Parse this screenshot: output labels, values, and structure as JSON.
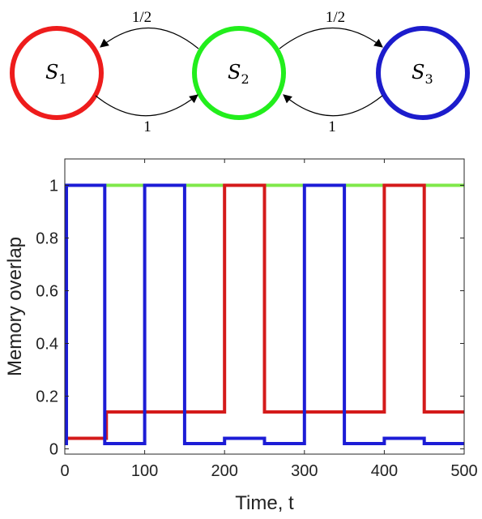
{
  "diagram": {
    "states": [
      {
        "id": "S1",
        "label": "S",
        "sub": "1",
        "color": "#ee1c1c"
      },
      {
        "id": "S2",
        "label": "S",
        "sub": "2",
        "color": "#22ee1c"
      },
      {
        "id": "S3",
        "label": "S",
        "sub": "3",
        "color": "#1c1ccc"
      }
    ],
    "transitions": [
      {
        "from": "S2",
        "to": "S1",
        "label": "1/2"
      },
      {
        "from": "S1",
        "to": "S2",
        "label": "1"
      },
      {
        "from": "S2",
        "to": "S3",
        "label": "1/2"
      },
      {
        "from": "S3",
        "to": "S2",
        "label": "1"
      }
    ]
  },
  "chart_data": {
    "type": "line",
    "title": "",
    "xlabel": "Time, t",
    "ylabel": "Memory overlap",
    "xlim": [
      0,
      500
    ],
    "ylim": [
      -0.02,
      1.1
    ],
    "xticks": [
      0,
      100,
      200,
      300,
      400,
      500
    ],
    "yticks": [
      0,
      0.2,
      0.4,
      0.6,
      0.8,
      1
    ],
    "xtick_labels": [
      "0",
      "100",
      "200",
      "300",
      "400",
      "500"
    ],
    "ytick_labels": [
      "0",
      "0.2",
      "0.4",
      "0.6",
      "0.8",
      "1"
    ],
    "grid": false,
    "series": [
      {
        "color": "#7fe84a",
        "x": [
          0,
          2,
          2,
          500
        ],
        "y": [
          0.02,
          0.02,
          1.0,
          1.0
        ]
      },
      {
        "color": "#d41a1a",
        "x": [
          0,
          52,
          52,
          200,
          200,
          250,
          250,
          400,
          400,
          450,
          450,
          500
        ],
        "y": [
          0.04,
          0.04,
          0.14,
          0.14,
          1.0,
          1.0,
          0.14,
          0.14,
          1.0,
          1.0,
          0.14,
          0.14
        ]
      },
      {
        "color": "#1c1cd6",
        "x": [
          0,
          2,
          2,
          50,
          50,
          100,
          100,
          150,
          150,
          200,
          200,
          250,
          250,
          300,
          300,
          350,
          350,
          400,
          400,
          450,
          450,
          500
        ],
        "y": [
          0.02,
          0.02,
          1.0,
          1.0,
          0.02,
          0.02,
          1.0,
          1.0,
          0.02,
          0.02,
          0.04,
          0.04,
          0.02,
          0.02,
          1.0,
          1.0,
          0.02,
          0.02,
          0.04,
          0.04,
          0.02,
          0.02
        ]
      }
    ]
  }
}
